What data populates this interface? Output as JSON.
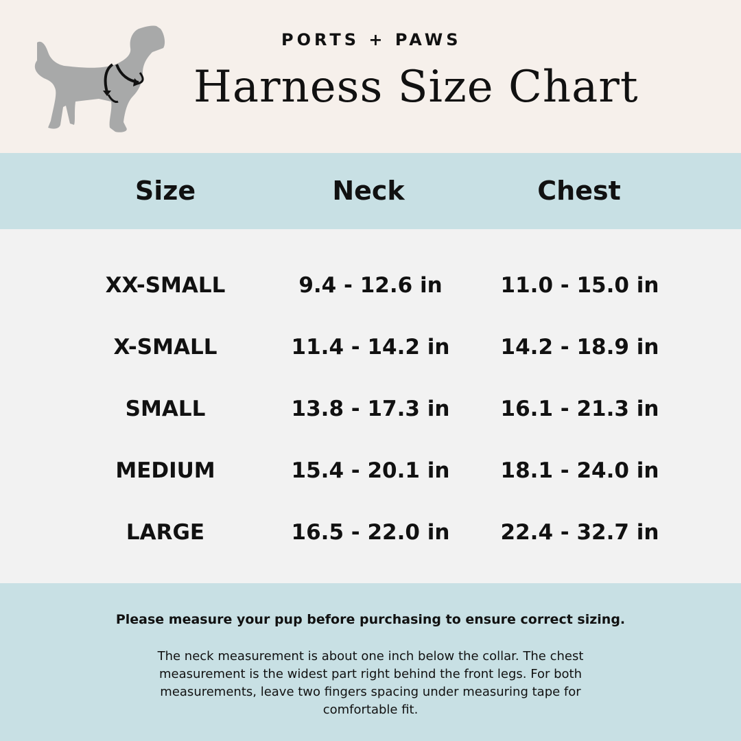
{
  "header": {
    "brand": "PORTS + PAWS",
    "title": "Harness Size Chart",
    "logo_icon": "dog-harness-icon"
  },
  "table": {
    "columns": [
      "Size",
      "Neck",
      "Chest"
    ],
    "rows": [
      {
        "size": "XX-SMALL",
        "neck": "9.4 - 12.6 in",
        "chest": "11.0 - 15.0 in"
      },
      {
        "size": "X-SMALL",
        "neck": "11.4 - 14.2 in",
        "chest": "14.2 - 18.9 in"
      },
      {
        "size": "SMALL",
        "neck": "13.8 - 17.3 in",
        "chest": "16.1 - 21.3 in"
      },
      {
        "size": "MEDIUM",
        "neck": "15.4 - 20.1 in",
        "chest": "18.1 - 24.0 in"
      },
      {
        "size": "LARGE",
        "neck": "16.5 - 22.0 in",
        "chest": "22.4 - 32.7 in"
      }
    ]
  },
  "footer": {
    "headline": "Please measure your pup before purchasing to ensure correct sizing.",
    "note": "The neck measurement is about one inch below the collar. The chest measurement is the widest part right behind the front legs. For both measurements, leave two fingers spacing under measuring tape for comfortable fit."
  },
  "colors": {
    "header_bg": "#f6f0eb",
    "accent_bg": "#c8e0e4",
    "body_bg": "#f2f2f2",
    "dog": "#a8a9a9"
  }
}
